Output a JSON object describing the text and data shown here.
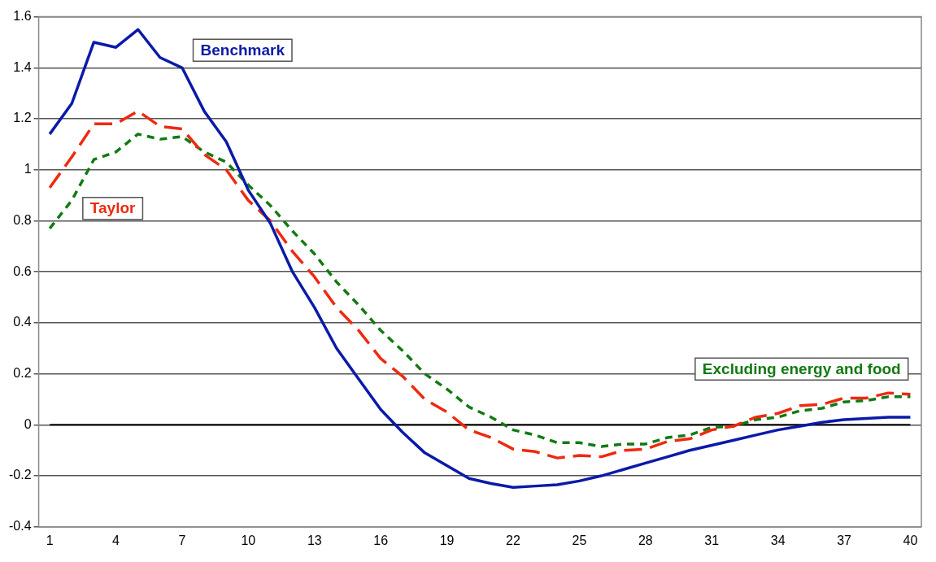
{
  "chart_data": {
    "type": "line",
    "categories": [
      "1",
      null,
      null,
      "4",
      null,
      null,
      "7",
      null,
      null,
      "10",
      null,
      null,
      "13",
      null,
      null,
      "16",
      null,
      null,
      "19",
      null,
      null,
      "22",
      null,
      null,
      "25",
      null,
      null,
      "28",
      null,
      null,
      "31",
      null,
      null,
      "34",
      null,
      null,
      "37",
      null,
      null,
      "40"
    ],
    "series": [
      {
        "name": "Benchmark",
        "color": "#0a1aa8",
        "line_style": "solid",
        "values": [
          1.14,
          1.26,
          1.5,
          1.48,
          1.55,
          1.44,
          1.4,
          1.23,
          1.11,
          0.92,
          0.79,
          0.6,
          0.46,
          0.3,
          0.18,
          0.06,
          -0.03,
          -0.11,
          -0.16,
          -0.21,
          -0.23,
          -0.245,
          -0.24,
          -0.235,
          -0.22,
          -0.2,
          -0.175,
          -0.15,
          -0.125,
          -0.1,
          -0.08,
          -0.06,
          -0.04,
          -0.02,
          -0.005,
          0.01,
          0.02,
          0.025,
          0.03,
          0.03
        ]
      },
      {
        "name": "Taylor",
        "color": "#ee2a10",
        "line_style": "dashed",
        "values": [
          0.93,
          1.05,
          1.18,
          1.18,
          1.23,
          1.17,
          1.16,
          1.06,
          1.0,
          0.88,
          0.8,
          0.68,
          0.58,
          0.46,
          0.37,
          0.26,
          0.19,
          0.1,
          0.05,
          -0.02,
          -0.05,
          -0.095,
          -0.105,
          -0.13,
          -0.12,
          -0.125,
          -0.1,
          -0.095,
          -0.065,
          -0.055,
          -0.02,
          -0.005,
          0.03,
          0.045,
          0.075,
          0.08,
          0.105,
          0.105,
          0.125,
          0.12
        ]
      },
      {
        "name": "Excluding energy and food",
        "color": "#127a12",
        "line_style": "dotted",
        "values": [
          0.77,
          0.88,
          1.04,
          1.07,
          1.14,
          1.12,
          1.13,
          1.07,
          1.03,
          0.94,
          0.86,
          0.76,
          0.67,
          0.56,
          0.47,
          0.37,
          0.29,
          0.2,
          0.14,
          0.07,
          0.03,
          -0.02,
          -0.04,
          -0.07,
          -0.07,
          -0.085,
          -0.075,
          -0.075,
          -0.05,
          -0.04,
          -0.01,
          -0.005,
          0.02,
          0.03,
          0.055,
          0.065,
          0.09,
          0.095,
          0.11,
          0.11
        ]
      }
    ],
    "ylim": [
      -0.4,
      1.6
    ],
    "yticks": [
      -0.4,
      -0.2,
      0,
      0.2,
      0.4,
      0.6,
      0.8,
      1,
      1.2,
      1.4,
      1.6
    ],
    "grid": "y",
    "legend": false,
    "marker": "none",
    "ref_lines": [
      {
        "axis": "y",
        "value": 0,
        "color": "#000000",
        "line_style": "solid"
      }
    ]
  }
}
